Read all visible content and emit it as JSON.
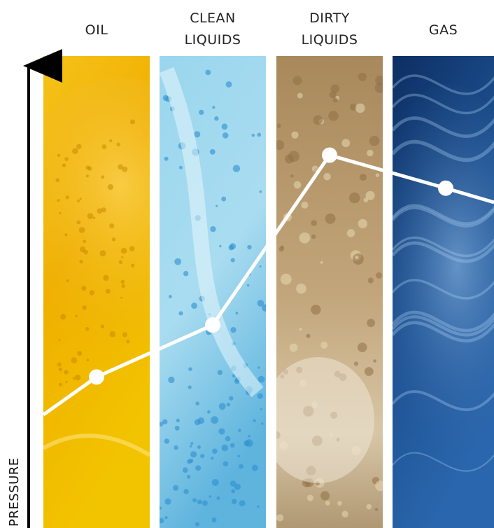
{
  "chart_data": {
    "type": "line",
    "categories": [
      "OIL",
      "CLEAN\nLIQUIDS",
      "DIRTY\nLIQUIDS",
      "GAS"
    ],
    "ylabel": "PRESSURE",
    "series": [
      {
        "values": [
          3.2,
          4.3,
          7.9,
          7.2
        ]
      }
    ],
    "line_start_value": 2.4,
    "line_end_value": 6.9,
    "ylim": [
      0,
      10
    ],
    "grid": false,
    "legend": "none",
    "column_colors": [
      "#f2b400",
      "#8fd0ea",
      "#b99a6a",
      "#1d4f8e"
    ]
  }
}
